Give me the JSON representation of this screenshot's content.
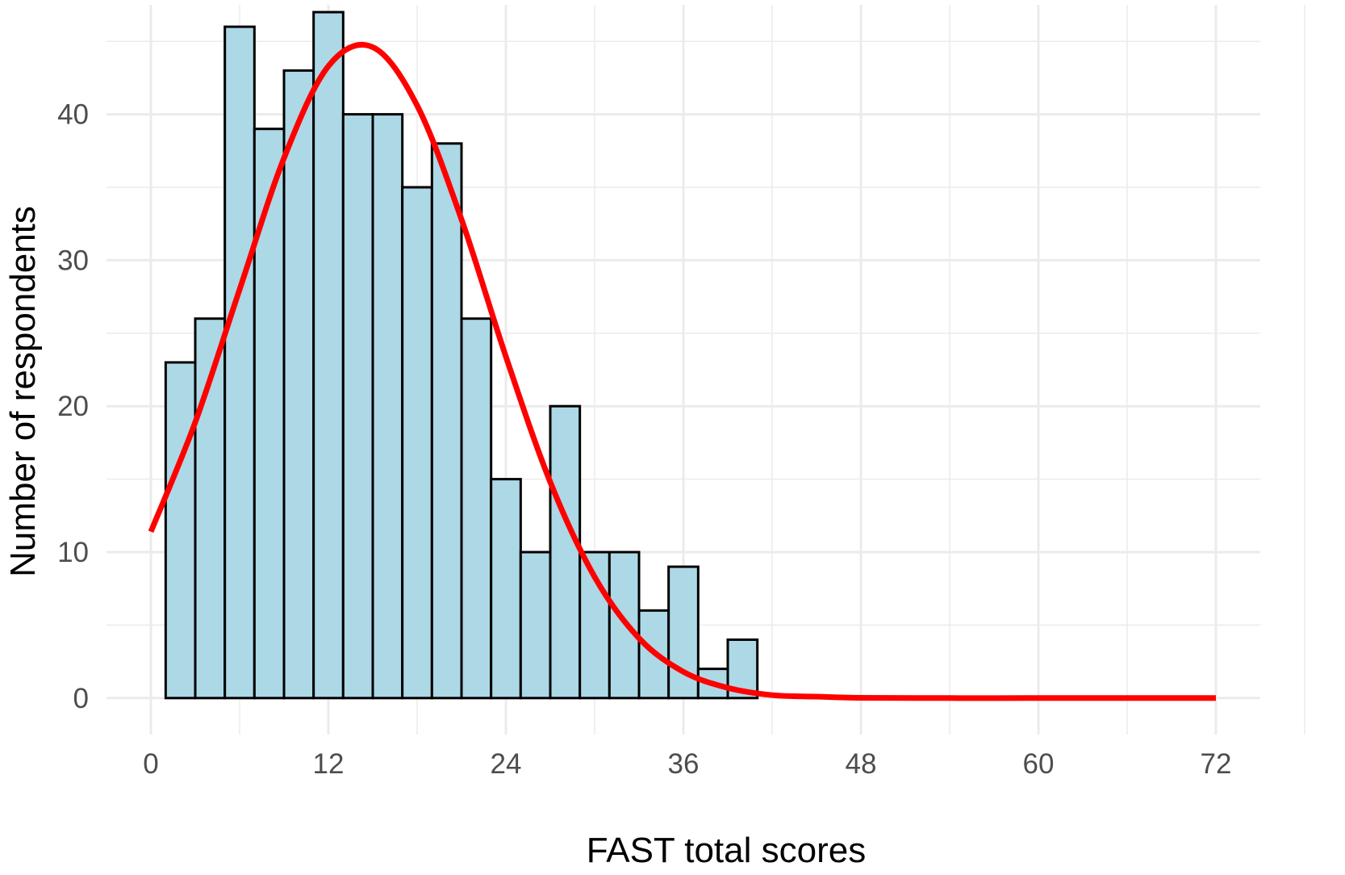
{
  "chart_data": {
    "type": "bar",
    "subtype": "histogram-with-density-curve",
    "xlabel": "FAST total scores",
    "ylabel": "Number of respondents",
    "xlim": [
      -3,
      75
    ],
    "ylim": [
      -2.5,
      47.5
    ],
    "x_ticks": [
      0,
      12,
      24,
      36,
      48,
      60,
      72
    ],
    "x_tick_labels": [
      "0",
      "12",
      "24",
      "36",
      "48",
      "60",
      "72"
    ],
    "y_ticks": [
      0,
      10,
      20,
      30,
      40
    ],
    "y_tick_labels": [
      "0",
      "10",
      "20",
      "30",
      "40"
    ],
    "grid": true,
    "bin_width": 2,
    "bins": [
      {
        "start": 1,
        "end": 3,
        "count": 23
      },
      {
        "start": 3,
        "end": 5,
        "count": 26
      },
      {
        "start": 5,
        "end": 7,
        "count": 46
      },
      {
        "start": 7,
        "end": 9,
        "count": 39
      },
      {
        "start": 9,
        "end": 11,
        "count": 43
      },
      {
        "start": 11,
        "end": 13,
        "count": 47
      },
      {
        "start": 13,
        "end": 15,
        "count": 40
      },
      {
        "start": 15,
        "end": 17,
        "count": 40
      },
      {
        "start": 17,
        "end": 19,
        "count": 35
      },
      {
        "start": 19,
        "end": 21,
        "count": 38
      },
      {
        "start": 21,
        "end": 23,
        "count": 26
      },
      {
        "start": 23,
        "end": 25,
        "count": 15
      },
      {
        "start": 25,
        "end": 27,
        "count": 10
      },
      {
        "start": 27,
        "end": 29,
        "count": 20
      },
      {
        "start": 29,
        "end": 31,
        "count": 10
      },
      {
        "start": 31,
        "end": 33,
        "count": 10
      },
      {
        "start": 33,
        "end": 35,
        "count": 6
      },
      {
        "start": 35,
        "end": 37,
        "count": 9
      },
      {
        "start": 37,
        "end": 39,
        "count": 2
      },
      {
        "start": 39,
        "end": 41,
        "count": 4
      }
    ],
    "density_curve": {
      "x": [
        0,
        3,
        6,
        9,
        12,
        15,
        18,
        21,
        24,
        27,
        30,
        33,
        36,
        39,
        42,
        45,
        48,
        54,
        60,
        66,
        72
      ],
      "y": [
        11.4,
        18.9,
        28.0,
        37.0,
        43.3,
        44.6,
        40.6,
        32.8,
        23.4,
        14.8,
        8.3,
        4.1,
        1.8,
        0.7,
        0.2,
        0.1,
        0.02,
        0,
        0,
        0,
        0
      ]
    },
    "colors": {
      "bar_fill": "#add8e6",
      "bar_stroke": "#000000",
      "curve": "#ff0000",
      "grid": "#ebebeb",
      "tick_text": "#4d4d4d",
      "axis_title": "#000000"
    }
  }
}
